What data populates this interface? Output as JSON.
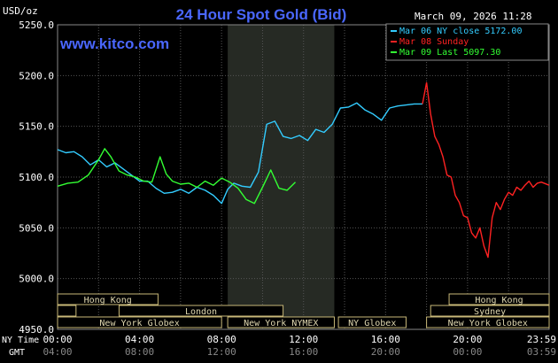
{
  "header": {
    "title": "24 Hour Spot Gold (Bid)",
    "unit": "USD/oz",
    "date": "March 09, 2026 11:28",
    "watermark": "www.kitco.com"
  },
  "legend": [
    {
      "text": "Mar 06 NY close 5172.00",
      "color": "#33ccff"
    },
    {
      "text": "Mar 08 Sunday",
      "color": "#ff2222"
    },
    {
      "text": "Mar 09 Last 5097.30",
      "color": "#33ff33"
    }
  ],
  "time_rows": {
    "ny_label": "NY Time",
    "gmt_label": "GMT"
  },
  "markets": [
    {
      "name": "Hong Kong",
      "row": 0,
      "from": 0.0,
      "to": 4.9
    },
    {
      "name": "",
      "row": 1,
      "from": 0.0,
      "to": 0.9
    },
    {
      "name": "London",
      "row": 1,
      "from": 3.0,
      "to": 11.0
    },
    {
      "name": "New York Globex",
      "row": 2,
      "from": 0.0,
      "to": 8.0
    },
    {
      "name": "New York NYMEX",
      "row": 2,
      "from": 8.3,
      "to": 13.5
    },
    {
      "name": "NY Globex",
      "row": 2,
      "from": 13.7,
      "to": 17.0
    },
    {
      "name": "Hong Kong",
      "row": 0,
      "from": 19.1,
      "to": 23.98
    },
    {
      "name": "Sydney",
      "row": 1,
      "from": 18.2,
      "to": 23.98
    },
    {
      "name": "New York Globex",
      "row": 2,
      "from": 18.0,
      "to": 23.98
    }
  ],
  "chart_data": {
    "type": "line",
    "title": "24 Hour Spot Gold (Bid)",
    "ylabel": "USD/oz",
    "xlabel": "NY Time",
    "xlim": [
      0,
      23.98
    ],
    "ylim": [
      4950,
      5250
    ],
    "yticks": [
      4950,
      5000,
      5050,
      5100,
      5150,
      5200,
      5250
    ],
    "ytick_labels": [
      "4950.0",
      "5000.0",
      "5050.0",
      "5100.0",
      "5150.0",
      "5200.0",
      "5250.0"
    ],
    "xticks": [
      0,
      4,
      8,
      12,
      16,
      20,
      23.98
    ],
    "xtick_labels": [
      "00:00",
      "04:00",
      "08:00",
      "12:00",
      "16:00",
      "20:00",
      "23:59"
    ],
    "gmt_tick_labels": [
      "04:00",
      "08:00",
      "12:00",
      "16:00",
      "20:00",
      "00:00",
      "03:59"
    ],
    "shaded_x_range": [
      8.3,
      13.5
    ],
    "grid": true,
    "legend_position": "top-right",
    "series": [
      {
        "name": "Mar 06 NY close 5172.00",
        "color": "#33ccff",
        "x": [
          0,
          0.4,
          0.8,
          1.2,
          1.6,
          2.0,
          2.4,
          2.8,
          3.2,
          3.6,
          4.0,
          4.4,
          4.8,
          5.2,
          5.6,
          6.0,
          6.4,
          6.8,
          7.2,
          7.6,
          8.0,
          8.3,
          8.6,
          9.0,
          9.4,
          9.8,
          10.2,
          10.6,
          11.0,
          11.4,
          11.8,
          12.2,
          12.6,
          13.0,
          13.4,
          13.8,
          14.2,
          14.6,
          15.0,
          15.4,
          15.8,
          16.2,
          16.6,
          17.0,
          17.4,
          17.8
        ],
        "y": [
          5127,
          5124,
          5125,
          5120,
          5112,
          5117,
          5110,
          5114,
          5108,
          5102,
          5096,
          5096,
          5089,
          5084,
          5085,
          5088,
          5084,
          5090,
          5087,
          5082,
          5074,
          5088,
          5094,
          5091,
          5090,
          5105,
          5152,
          5155,
          5140,
          5138,
          5141,
          5136,
          5147,
          5144,
          5152,
          5168,
          5169,
          5173,
          5166,
          5162,
          5156,
          5168,
          5170,
          5171,
          5172,
          5172
        ]
      },
      {
        "name": "Mar 08 Sunday",
        "color": "#ff2222",
        "x": [
          17.8,
          18.0,
          18.2,
          18.4,
          18.6,
          18.8,
          19.0,
          19.2,
          19.4,
          19.6,
          19.8,
          20.0,
          20.2,
          20.4,
          20.6,
          20.8,
          21.0,
          21.2,
          21.4,
          21.6,
          21.8,
          22.0,
          22.2,
          22.4,
          22.6,
          22.8,
          23.0,
          23.2,
          23.4,
          23.6,
          23.98
        ],
        "y": [
          5172,
          5193,
          5162,
          5140,
          5132,
          5120,
          5102,
          5100,
          5082,
          5075,
          5062,
          5060,
          5045,
          5040,
          5050,
          5032,
          5021,
          5060,
          5075,
          5068,
          5078,
          5085,
          5082,
          5090,
          5087,
          5092,
          5096,
          5090,
          5094,
          5095,
          5092
        ]
      },
      {
        "name": "Mar 09 Last 5097.30",
        "color": "#33ff33",
        "x": [
          0,
          0.5,
          1.0,
          1.5,
          2.0,
          2.3,
          2.6,
          3.0,
          3.4,
          3.8,
          4.2,
          4.6,
          5.0,
          5.3,
          5.6,
          6.0,
          6.4,
          6.8,
          7.2,
          7.6,
          8.0,
          8.4,
          8.8,
          9.2,
          9.6,
          10.0,
          10.4,
          10.8,
          11.2,
          11.6
        ],
        "y": [
          5091,
          5094,
          5095,
          5102,
          5117,
          5128,
          5120,
          5106,
          5102,
          5100,
          5096,
          5095,
          5120,
          5103,
          5096,
          5093,
          5094,
          5090,
          5096,
          5092,
          5099,
          5095,
          5089,
          5078,
          5074,
          5090,
          5107,
          5089,
          5087,
          5095
        ]
      }
    ]
  }
}
